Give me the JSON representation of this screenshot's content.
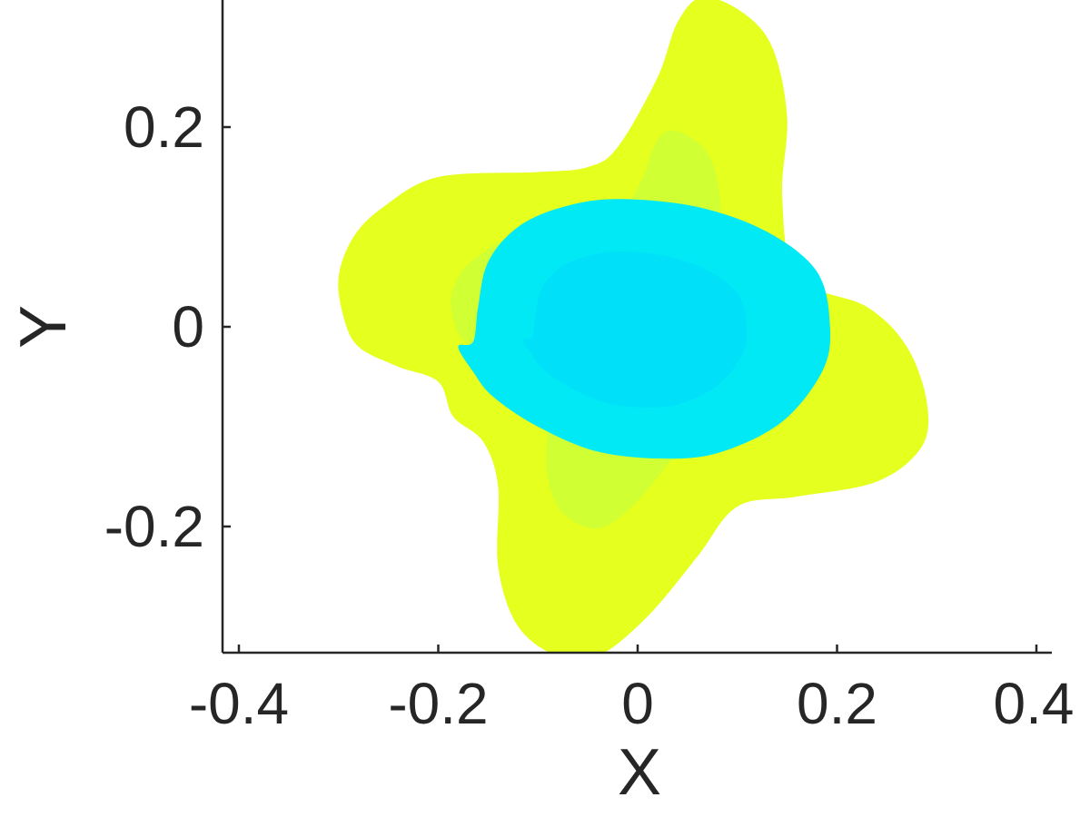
{
  "chart_data": {
    "type": "area",
    "title": "",
    "xlabel": "X",
    "ylabel": "Y",
    "xlim": [
      -0.42,
      0.42
    ],
    "ylim": [
      -0.33,
      0.33
    ],
    "xticks": [
      -0.4,
      -0.2,
      0,
      0.2,
      0.4
    ],
    "yticks": [
      -0.2,
      0,
      0.2
    ],
    "xtick_labels": [
      "-0.4",
      "-0.2",
      "0",
      "0.2",
      "0.4"
    ],
    "ytick_labels": [
      "-0.2",
      "0",
      "0.2"
    ],
    "grid": false,
    "legend": "none",
    "series": [
      {
        "color": "#e5ff1e",
        "inner_color": "#c8ff3c",
        "points": [
          [
            0.065,
            0.33
          ],
          [
            0.105,
            0.315
          ],
          [
            0.135,
            0.28
          ],
          [
            0.15,
            0.21
          ],
          [
            0.145,
            0.13
          ],
          [
            0.16,
            0.05
          ],
          [
            0.23,
            0.02
          ],
          [
            0.27,
            -0.02
          ],
          [
            0.29,
            -0.075
          ],
          [
            0.285,
            -0.12
          ],
          [
            0.24,
            -0.155
          ],
          [
            0.16,
            -0.17
          ],
          [
            0.1,
            -0.18
          ],
          [
            0.06,
            -0.23
          ],
          [
            0.01,
            -0.29
          ],
          [
            -0.04,
            -0.33
          ],
          [
            -0.08,
            -0.33
          ],
          [
            -0.12,
            -0.3
          ],
          [
            -0.14,
            -0.24
          ],
          [
            -0.14,
            -0.16
          ],
          [
            -0.155,
            -0.115
          ],
          [
            -0.185,
            -0.09
          ],
          [
            -0.2,
            -0.055
          ],
          [
            -0.24,
            -0.04
          ],
          [
            -0.28,
            -0.02
          ],
          [
            -0.295,
            0.01
          ],
          [
            -0.3,
            0.05
          ],
          [
            -0.285,
            0.09
          ],
          [
            -0.255,
            0.12
          ],
          [
            -0.2,
            0.15
          ],
          [
            -0.1,
            0.155
          ],
          [
            -0.05,
            0.16
          ],
          [
            -0.02,
            0.18
          ],
          [
            0.02,
            0.25
          ],
          [
            0.04,
            0.305
          ]
        ]
      },
      {
        "color": "#00e9f5",
        "inner_color": "#00dcf8",
        "points": [
          [
            -0.02,
            0.128
          ],
          [
            0.06,
            0.12
          ],
          [
            0.13,
            0.095
          ],
          [
            0.18,
            0.055
          ],
          [
            0.193,
            0.0
          ],
          [
            0.185,
            -0.045
          ],
          [
            0.145,
            -0.095
          ],
          [
            0.085,
            -0.125
          ],
          [
            0.03,
            -0.132
          ],
          [
            -0.04,
            -0.125
          ],
          [
            -0.1,
            -0.1
          ],
          [
            -0.145,
            -0.07
          ],
          [
            -0.165,
            -0.045
          ],
          [
            -0.18,
            -0.02
          ],
          [
            -0.165,
            -0.015
          ],
          [
            -0.16,
            0.02
          ],
          [
            -0.15,
            0.065
          ],
          [
            -0.12,
            0.1
          ],
          [
            -0.075,
            0.12
          ]
        ]
      }
    ]
  }
}
